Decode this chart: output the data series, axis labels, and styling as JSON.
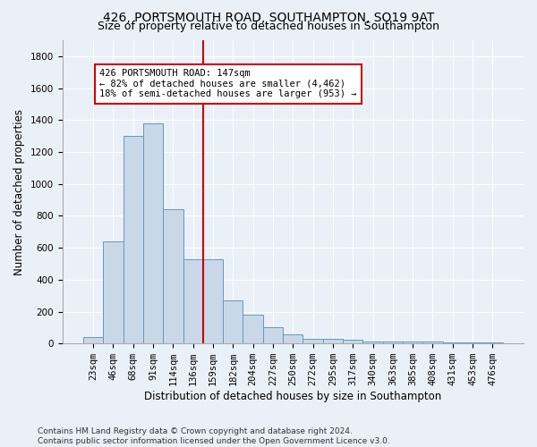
{
  "title1": "426, PORTSMOUTH ROAD, SOUTHAMPTON, SO19 9AT",
  "title2": "Size of property relative to detached houses in Southampton",
  "xlabel": "Distribution of detached houses by size in Southampton",
  "ylabel": "Number of detached properties",
  "footer1": "Contains HM Land Registry data © Crown copyright and database right 2024.",
  "footer2": "Contains public sector information licensed under the Open Government Licence v3.0.",
  "categories": [
    "23sqm",
    "46sqm",
    "68sqm",
    "91sqm",
    "114sqm",
    "136sqm",
    "159sqm",
    "182sqm",
    "204sqm",
    "227sqm",
    "250sqm",
    "272sqm",
    "295sqm",
    "317sqm",
    "340sqm",
    "363sqm",
    "385sqm",
    "408sqm",
    "431sqm",
    "453sqm",
    "476sqm"
  ],
  "values": [
    40,
    640,
    1300,
    1380,
    840,
    530,
    530,
    270,
    180,
    100,
    60,
    30,
    30,
    25,
    15,
    12,
    10,
    10,
    5,
    5,
    5
  ],
  "bar_color": "#c8d8e8",
  "bar_edge_color": "#6699bb",
  "vline_color": "#cc0000",
  "annotation_line1": "426 PORTSMOUTH ROAD: 147sqm",
  "annotation_line2": "← 82% of detached houses are smaller (4,462)",
  "annotation_line3": "18% of semi-detached houses are larger (953) →",
  "annotation_box_color": "#ffffff",
  "annotation_box_edge": "#cc0000",
  "ylim": [
    0,
    1900
  ],
  "yticks": [
    0,
    200,
    400,
    600,
    800,
    1000,
    1200,
    1400,
    1600,
    1800
  ],
  "bg_color": "#eaf0f8",
  "plot_bg_color": "#eaf0f8",
  "grid_color": "#ffffff",
  "title1_fontsize": 10,
  "title2_fontsize": 9,
  "xlabel_fontsize": 8.5,
  "ylabel_fontsize": 8.5,
  "tick_fontsize": 7.5,
  "annot_fontsize": 7.5
}
